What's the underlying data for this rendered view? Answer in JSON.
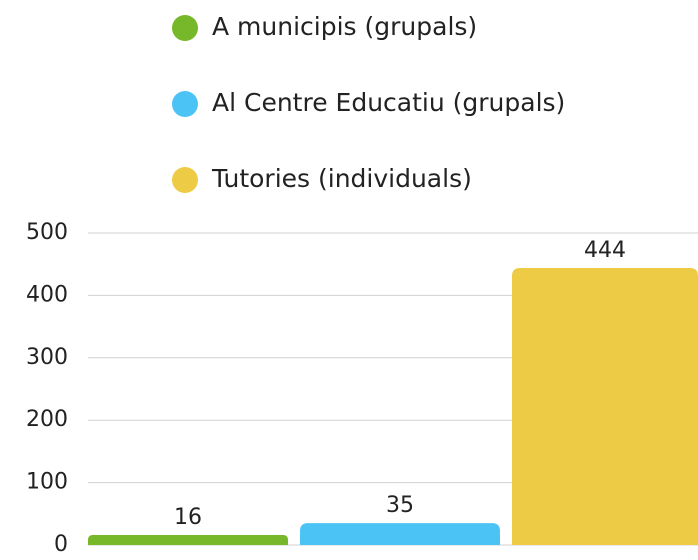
{
  "chart_data": {
    "type": "bar",
    "series": [
      {
        "name": "A municipis (grupals)",
        "color": "#76b82a",
        "values": [
          16
        ]
      },
      {
        "name": "Al Centre Educatiu (grupals)",
        "color": "#4cc3f5",
        "values": [
          35
        ]
      },
      {
        "name": "Tutories (individuals)",
        "color": "#eecb45",
        "values": [
          444
        ]
      }
    ],
    "ylim": [
      0,
      500
    ],
    "yticks": [
      0,
      100,
      200,
      300,
      400,
      500
    ],
    "grid": true,
    "legend": "top"
  }
}
